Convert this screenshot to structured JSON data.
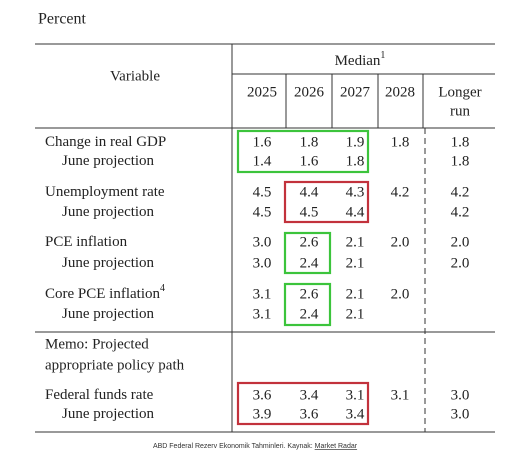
{
  "header": {
    "title": "Percent"
  },
  "table": {
    "variable_header": "Variable",
    "group_header": "Median",
    "group_header_note": "1",
    "columns": [
      "2025",
      "2026",
      "2027",
      "2028"
    ],
    "last_column": [
      "Longer",
      "run"
    ],
    "rows": [
      {
        "label": "Change in real GDP",
        "values": [
          "1.6",
          "1.8",
          "1.9",
          "1.8",
          "1.8"
        ]
      },
      {
        "label": "June projection",
        "values": [
          "1.4",
          "1.6",
          "1.8",
          null,
          "1.8"
        ]
      },
      {
        "label": "Unemployment rate",
        "values": [
          "4.5",
          "4.4",
          "4.3",
          "4.2",
          "4.2"
        ]
      },
      {
        "label": "June projection",
        "values": [
          "4.5",
          "4.5",
          "4.4",
          null,
          "4.2"
        ]
      },
      {
        "label": "PCE inflation",
        "values": [
          "3.0",
          "2.6",
          "2.1",
          "2.0",
          "2.0"
        ]
      },
      {
        "label": "June projection",
        "values": [
          "3.0",
          "2.4",
          "2.1",
          null,
          "2.0"
        ]
      },
      {
        "label": "Core PCE inflation",
        "note": "4",
        "values": [
          "3.1",
          "2.6",
          "2.1",
          "2.0",
          null
        ]
      },
      {
        "label": "June projection",
        "values": [
          "3.1",
          "2.4",
          "2.1",
          null,
          null
        ]
      },
      {
        "label": "Federal funds rate",
        "values": [
          "3.6",
          "3.4",
          "3.1",
          "3.1",
          "3.0"
        ]
      },
      {
        "label": "June projection",
        "values": [
          "3.9",
          "3.6",
          "3.4",
          null,
          "3.0"
        ]
      }
    ],
    "memo": [
      "Memo: Projected",
      "appropriate policy path"
    ]
  },
  "caption": {
    "text": "ABD Federal Rezerv Ekonomik Tahminleri. Kaynak: ",
    "link": "Market Radar"
  }
}
